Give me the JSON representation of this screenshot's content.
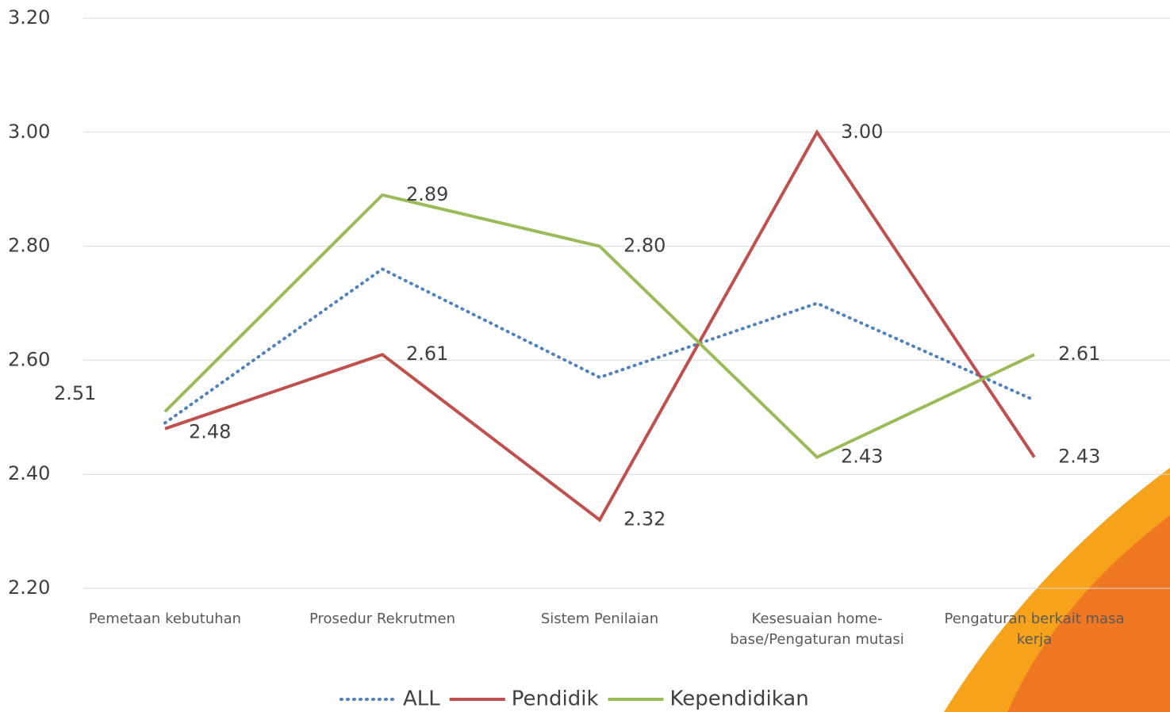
{
  "chart_data": {
    "type": "line",
    "categories": [
      "Pemetaan kebutuhan",
      "Prosedur Rekrutmen",
      "Sistem Penilaian",
      "Kesesuaian home-base/Pengaturan mutasi",
      "Pengaturan berkait masa kerja"
    ],
    "series": [
      {
        "name": "ALL",
        "color": "#4f81bd",
        "dash": "dotted",
        "values": [
          2.49,
          2.76,
          2.57,
          2.7,
          2.53
        ]
      },
      {
        "name": "Pendidik",
        "color": "#c0504d",
        "values": [
          2.48,
          2.61,
          2.32,
          3.0,
          2.43
        ],
        "value_labels": [
          "2.48",
          "2.61",
          "2.32",
          "3.00",
          "2.43"
        ]
      },
      {
        "name": "Kependidikan",
        "color": "#9bbb59",
        "values": [
          2.51,
          2.89,
          2.8,
          2.43,
          2.61
        ],
        "value_labels": [
          "2.51",
          "2.89",
          "2.80",
          "2.43",
          "2.61"
        ]
      }
    ],
    "ylim": [
      2.2,
      3.2
    ],
    "yticks": [
      {
        "value": 2.2,
        "label": "2.20"
      },
      {
        "value": 2.4,
        "label": "2.40"
      },
      {
        "value": 2.6,
        "label": "2.60"
      },
      {
        "value": 2.8,
        "label": "2.80"
      },
      {
        "value": 3.0,
        "label": "3.00"
      },
      {
        "value": 3.2,
        "label": "3.20"
      }
    ],
    "grid": true,
    "legend": "bottom"
  }
}
